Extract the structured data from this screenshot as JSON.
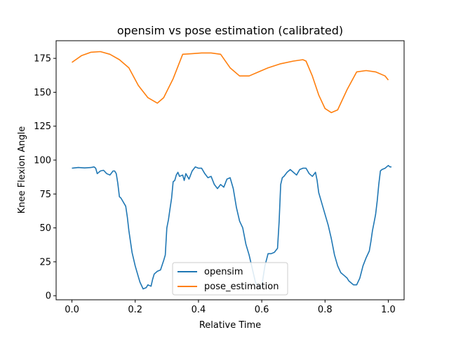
{
  "chart_data": {
    "type": "line",
    "title": "opensim vs pose estimation (calibrated)",
    "xlabel": "Relative Time",
    "ylabel": "Knee Flexion Angle",
    "xlim": [
      -0.05,
      1.05
    ],
    "ylim": [
      -3,
      188
    ],
    "xticks": [
      0.0,
      0.2,
      0.4,
      0.6,
      0.8,
      1.0
    ],
    "xtick_labels": [
      "0.0",
      "0.2",
      "0.4",
      "0.6",
      "0.8",
      "1.0"
    ],
    "yticks": [
      0,
      25,
      50,
      75,
      100,
      125,
      150,
      175
    ],
    "ytick_labels": [
      "0",
      "25",
      "50",
      "75",
      "100",
      "125",
      "150",
      "175"
    ],
    "grid": false,
    "legend_position": "lower-center",
    "series": [
      {
        "name": "opensim",
        "color": "#1f77b4",
        "points": [
          [
            0.0,
            94
          ],
          [
            0.02,
            94.5
          ],
          [
            0.04,
            94.2
          ],
          [
            0.06,
            94.5
          ],
          [
            0.07,
            95
          ],
          [
            0.075,
            94
          ],
          [
            0.08,
            90
          ],
          [
            0.09,
            92
          ],
          [
            0.1,
            92.5
          ],
          [
            0.11,
            90
          ],
          [
            0.12,
            89
          ],
          [
            0.13,
            92
          ],
          [
            0.135,
            92
          ],
          [
            0.14,
            90
          ],
          [
            0.145,
            83
          ],
          [
            0.15,
            73
          ],
          [
            0.155,
            72
          ],
          [
            0.16,
            70
          ],
          [
            0.165,
            68
          ],
          [
            0.17,
            66
          ],
          [
            0.175,
            58
          ],
          [
            0.18,
            48
          ],
          [
            0.19,
            32
          ],
          [
            0.2,
            22
          ],
          [
            0.21,
            14
          ],
          [
            0.215,
            10
          ],
          [
            0.225,
            5
          ],
          [
            0.235,
            6
          ],
          [
            0.24,
            8
          ],
          [
            0.25,
            7
          ],
          [
            0.255,
            12
          ],
          [
            0.26,
            16
          ],
          [
            0.27,
            18
          ],
          [
            0.28,
            19
          ],
          [
            0.29,
            26
          ],
          [
            0.295,
            30
          ],
          [
            0.3,
            50
          ],
          [
            0.305,
            56
          ],
          [
            0.31,
            64
          ],
          [
            0.315,
            72
          ],
          [
            0.32,
            84
          ],
          [
            0.325,
            85
          ],
          [
            0.33,
            89
          ],
          [
            0.335,
            91
          ],
          [
            0.34,
            88
          ],
          [
            0.35,
            89
          ],
          [
            0.355,
            85
          ],
          [
            0.36,
            90
          ],
          [
            0.37,
            86
          ],
          [
            0.38,
            92
          ],
          [
            0.39,
            95
          ],
          [
            0.4,
            94
          ],
          [
            0.41,
            94
          ],
          [
            0.42,
            90
          ],
          [
            0.43,
            87
          ],
          [
            0.44,
            88
          ],
          [
            0.45,
            82
          ],
          [
            0.46,
            79
          ],
          [
            0.47,
            82
          ],
          [
            0.48,
            80
          ],
          [
            0.49,
            86
          ],
          [
            0.5,
            87
          ],
          [
            0.51,
            79
          ],
          [
            0.52,
            65
          ],
          [
            0.53,
            55
          ],
          [
            0.54,
            50
          ],
          [
            0.55,
            38
          ],
          [
            0.56,
            30
          ],
          [
            0.57,
            20
          ],
          [
            0.58,
            10
          ],
          [
            0.59,
            6
          ],
          [
            0.6,
            7
          ],
          [
            0.61,
            22
          ],
          [
            0.62,
            31
          ],
          [
            0.63,
            31
          ],
          [
            0.64,
            32
          ],
          [
            0.65,
            35
          ],
          [
            0.655,
            55
          ],
          [
            0.66,
            82
          ],
          [
            0.665,
            87
          ],
          [
            0.67,
            88
          ],
          [
            0.68,
            91
          ],
          [
            0.69,
            93
          ],
          [
            0.7,
            91
          ],
          [
            0.71,
            89
          ],
          [
            0.72,
            93
          ],
          [
            0.73,
            94
          ],
          [
            0.74,
            94
          ],
          [
            0.75,
            90
          ],
          [
            0.76,
            88
          ],
          [
            0.77,
            91
          ],
          [
            0.775,
            85
          ],
          [
            0.78,
            76
          ],
          [
            0.79,
            68
          ],
          [
            0.8,
            60
          ],
          [
            0.81,
            52
          ],
          [
            0.82,
            42
          ],
          [
            0.83,
            30
          ],
          [
            0.84,
            22
          ],
          [
            0.85,
            17
          ],
          [
            0.86,
            15
          ],
          [
            0.87,
            13
          ],
          [
            0.875,
            11
          ],
          [
            0.88,
            10
          ],
          [
            0.89,
            8
          ],
          [
            0.9,
            8
          ],
          [
            0.91,
            13
          ],
          [
            0.92,
            22
          ],
          [
            0.93,
            28
          ],
          [
            0.94,
            33
          ],
          [
            0.945,
            40
          ],
          [
            0.95,
            48
          ],
          [
            0.955,
            54
          ],
          [
            0.96,
            60
          ],
          [
            0.965,
            70
          ],
          [
            0.97,
            82
          ],
          [
            0.975,
            92
          ],
          [
            0.98,
            93
          ],
          [
            0.99,
            94
          ],
          [
            1.0,
            96
          ],
          [
            1.005,
            95
          ],
          [
            1.01,
            95
          ]
        ]
      },
      {
        "name": "pose_estimation",
        "color": "#ff7f0e",
        "points": [
          [
            0.0,
            172
          ],
          [
            0.03,
            177
          ],
          [
            0.06,
            179.5
          ],
          [
            0.09,
            180
          ],
          [
            0.12,
            178
          ],
          [
            0.15,
            174
          ],
          [
            0.18,
            168
          ],
          [
            0.21,
            155
          ],
          [
            0.24,
            146
          ],
          [
            0.27,
            142
          ],
          [
            0.29,
            146
          ],
          [
            0.32,
            160
          ],
          [
            0.35,
            178
          ],
          [
            0.38,
            178.5
          ],
          [
            0.41,
            179
          ],
          [
            0.44,
            179
          ],
          [
            0.47,
            178
          ],
          [
            0.5,
            168
          ],
          [
            0.53,
            162
          ],
          [
            0.56,
            162
          ],
          [
            0.59,
            165
          ],
          [
            0.62,
            168
          ],
          [
            0.66,
            171
          ],
          [
            0.7,
            173
          ],
          [
            0.73,
            174
          ],
          [
            0.74,
            173
          ],
          [
            0.76,
            162
          ],
          [
            0.78,
            148
          ],
          [
            0.8,
            138
          ],
          [
            0.82,
            135
          ],
          [
            0.84,
            137
          ],
          [
            0.87,
            152
          ],
          [
            0.9,
            165
          ],
          [
            0.93,
            166
          ],
          [
            0.96,
            165
          ],
          [
            0.99,
            162
          ],
          [
            1.0,
            159
          ]
        ]
      }
    ]
  }
}
